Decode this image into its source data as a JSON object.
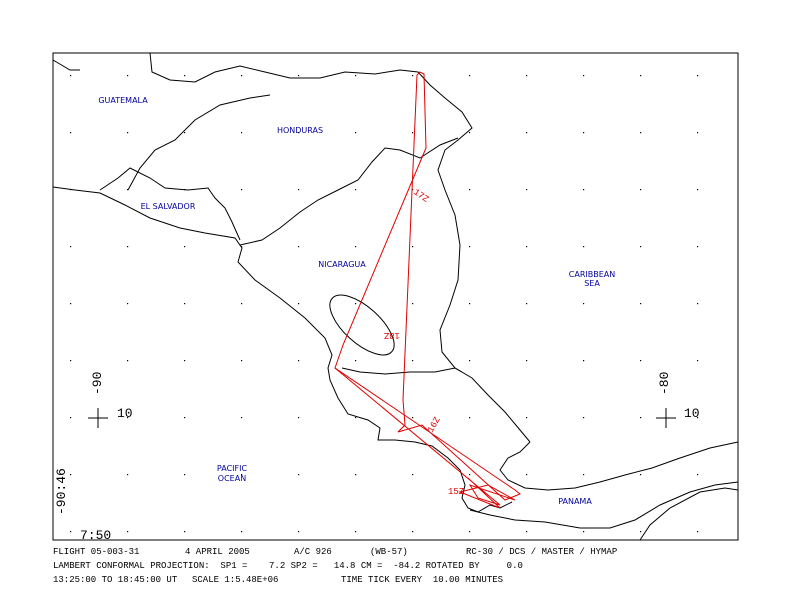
{
  "map": {
    "places": [
      "GUATEMALA",
      "HONDURAS",
      "EL SALVADOR",
      "NICARAGUA",
      "CARIBBEAN",
      "SEA",
      "PACIFIC",
      "OCEAN",
      "PANAMA"
    ],
    "grid_labels": [
      "-90",
      "10",
      "-80",
      "10",
      "-90:46",
      "7:50"
    ],
    "time_labels": [
      "17Z",
      "18Z",
      "16Z",
      "15Z"
    ]
  },
  "footer": {
    "row1": [
      "FLIGHT 05-003-31",
      "4 APRIL 2005",
      "A/C 926",
      "(WB-57)",
      "RC-30 / DCS / MASTER / HYMAP"
    ],
    "row2": [
      "LAMBERT CONFORMAL PROJECTION:  SP1 =    7.2 SP2 =   14.8 CM =  -84.2 ROTATED BY     0.0"
    ],
    "row3": [
      "13:25:00 TO 18:45:00 UT",
      "SCALE 1:5.48E+06",
      "TIME TICK EVERY  10.00 MINUTES"
    ]
  }
}
